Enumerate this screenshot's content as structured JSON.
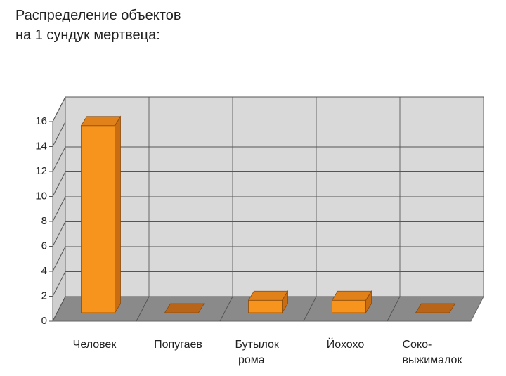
{
  "chart_data": {
    "type": "bar3d",
    "title": [
      "Распределение объектов",
      "на 1 сундук мертвеца:"
    ],
    "categories": [
      "Человек",
      "Попугаев",
      "Бутылок рома",
      "Йохохо",
      "Соко-выжималок"
    ],
    "values": [
      15,
      0,
      1,
      1,
      0
    ],
    "color": "#f7941d",
    "ylim": [
      0,
      16
    ],
    "yticks": [
      0,
      2,
      4,
      6,
      8,
      10,
      12,
      14,
      16
    ],
    "grid": true
  }
}
